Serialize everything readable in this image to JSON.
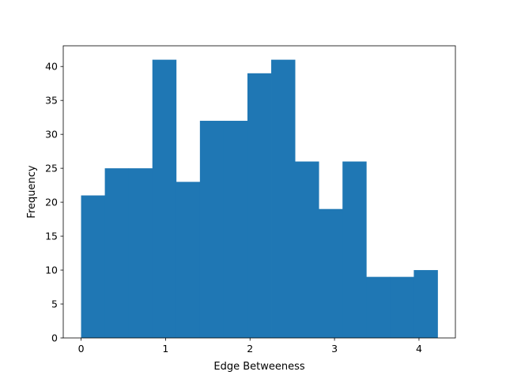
{
  "chart_data": {
    "type": "bar",
    "title": "",
    "xlabel": "Edge Betweeness",
    "ylabel": "Frequency",
    "bin_edges": [
      0.0,
      0.2813,
      0.5627,
      0.844,
      1.1253,
      1.4067,
      1.688,
      1.9693,
      2.2507,
      2.532,
      2.8133,
      3.0947,
      3.376,
      3.6573,
      3.9387,
      4.22
    ],
    "values": [
      21,
      25,
      25,
      41,
      23,
      32,
      32,
      39,
      41,
      26,
      19,
      26,
      9,
      9,
      10
    ],
    "xlim": [
      -0.211,
      4.431
    ],
    "ylim": [
      0,
      43.05
    ],
    "x_ticks": [
      0,
      1,
      2,
      3,
      4
    ],
    "y_ticks": [
      0,
      5,
      10,
      15,
      20,
      25,
      30,
      35,
      40
    ],
    "bar_color": "#1f77b4",
    "grid": false,
    "legend": "none"
  }
}
